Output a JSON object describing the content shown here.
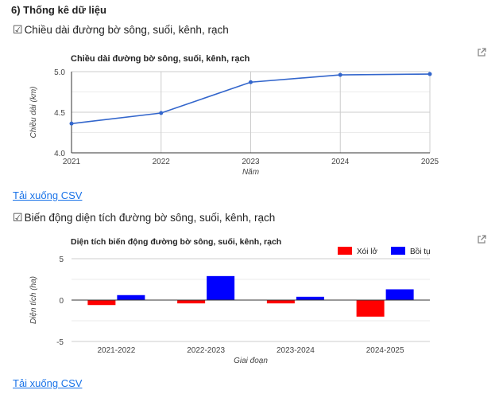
{
  "page": {
    "section_title": "6) Thống kê dữ liệu"
  },
  "section1": {
    "check_label": "Chiều dài đường bờ sông, suối, kênh, rạch",
    "download_label": "Tải xuống CSV"
  },
  "section2": {
    "check_label": "Biến động diện tích đường bờ sông, suối, kênh, rạch",
    "download_label": "Tải xuống CSV"
  },
  "icons": {
    "checkbox": "check-icon",
    "external": "external-link-icon"
  },
  "chart_data": [
    {
      "type": "line",
      "title": "Chiều dài đường bờ sông, suối, kênh, rạch",
      "xlabel": "Năm",
      "ylabel": "Chiều dài (km)",
      "x": [
        "2021",
        "2022",
        "2023",
        "2024",
        "2025"
      ],
      "series": [
        {
          "values": [
            4.36,
            4.49,
            4.87,
            4.96,
            4.97
          ],
          "color": "#3366cc"
        }
      ],
      "ylim": [
        4.0,
        5.0
      ],
      "yticks": [
        "4.0",
        "4.5",
        "5.0"
      ],
      "grid": true
    },
    {
      "type": "bar",
      "title": "Diện tích biến động đường bờ sông, suối, kênh, rạch",
      "xlabel": "Giai đoạn",
      "ylabel": "Diện tích (ha)",
      "categories": [
        "2021-2022",
        "2022-2023",
        "2023-2024",
        "2024-2025"
      ],
      "series": [
        {
          "name": "Xói lở",
          "values": [
            -0.6,
            -0.4,
            -0.4,
            -2.0
          ],
          "color": "#ff0000"
        },
        {
          "name": "Bồi tụ",
          "values": [
            0.6,
            2.9,
            0.4,
            1.3
          ],
          "color": "#0000ff"
        }
      ],
      "ylim": [
        -5,
        5
      ],
      "yticks": [
        "5",
        "0",
        "-5"
      ],
      "legend": "top-right",
      "grid": true
    }
  ]
}
